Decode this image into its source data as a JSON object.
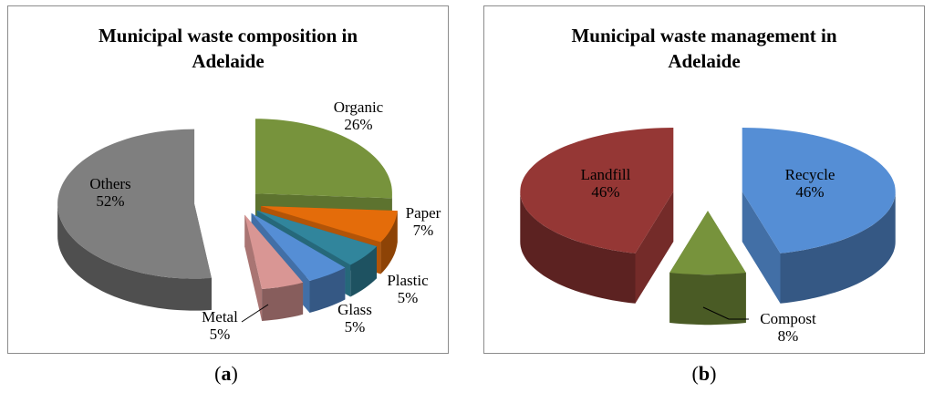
{
  "captions": {
    "a_open": "(",
    "a_letter": "a",
    "a_close": ")",
    "b_open": "(",
    "b_letter": "b",
    "b_close": ")"
  },
  "chart_data": [
    {
      "type": "pie",
      "title_line1": "Municipal waste composition in",
      "title_line2": "Adelaide",
      "slices": [
        {
          "name": "Organic",
          "value": 26,
          "label": "26%",
          "color": "#77933c"
        },
        {
          "name": "Paper",
          "value": 7,
          "label": "7%",
          "color": "#e46c0a"
        },
        {
          "name": "Plastic",
          "value": 5,
          "label": "5%",
          "color": "#31859c"
        },
        {
          "name": "Glass",
          "value": 5,
          "label": "5%",
          "color": "#558ed5"
        },
        {
          "name": "Metal",
          "value": 5,
          "label": "5%",
          "color": "#d99694"
        },
        {
          "name": "Others",
          "value": 52,
          "label": "52%",
          "color": "#7f7f7f"
        }
      ]
    },
    {
      "type": "pie",
      "title_line1": "Municipal waste management in",
      "title_line2": "Adelaide",
      "slices": [
        {
          "name": "Recycle",
          "value": 46,
          "label": "46%",
          "color": "#558ed5"
        },
        {
          "name": "Compost",
          "value": 8,
          "label": "8%",
          "color": "#77933c"
        },
        {
          "name": "Landfill",
          "value": 46,
          "label": "46%",
          "color": "#953735"
        }
      ]
    }
  ]
}
